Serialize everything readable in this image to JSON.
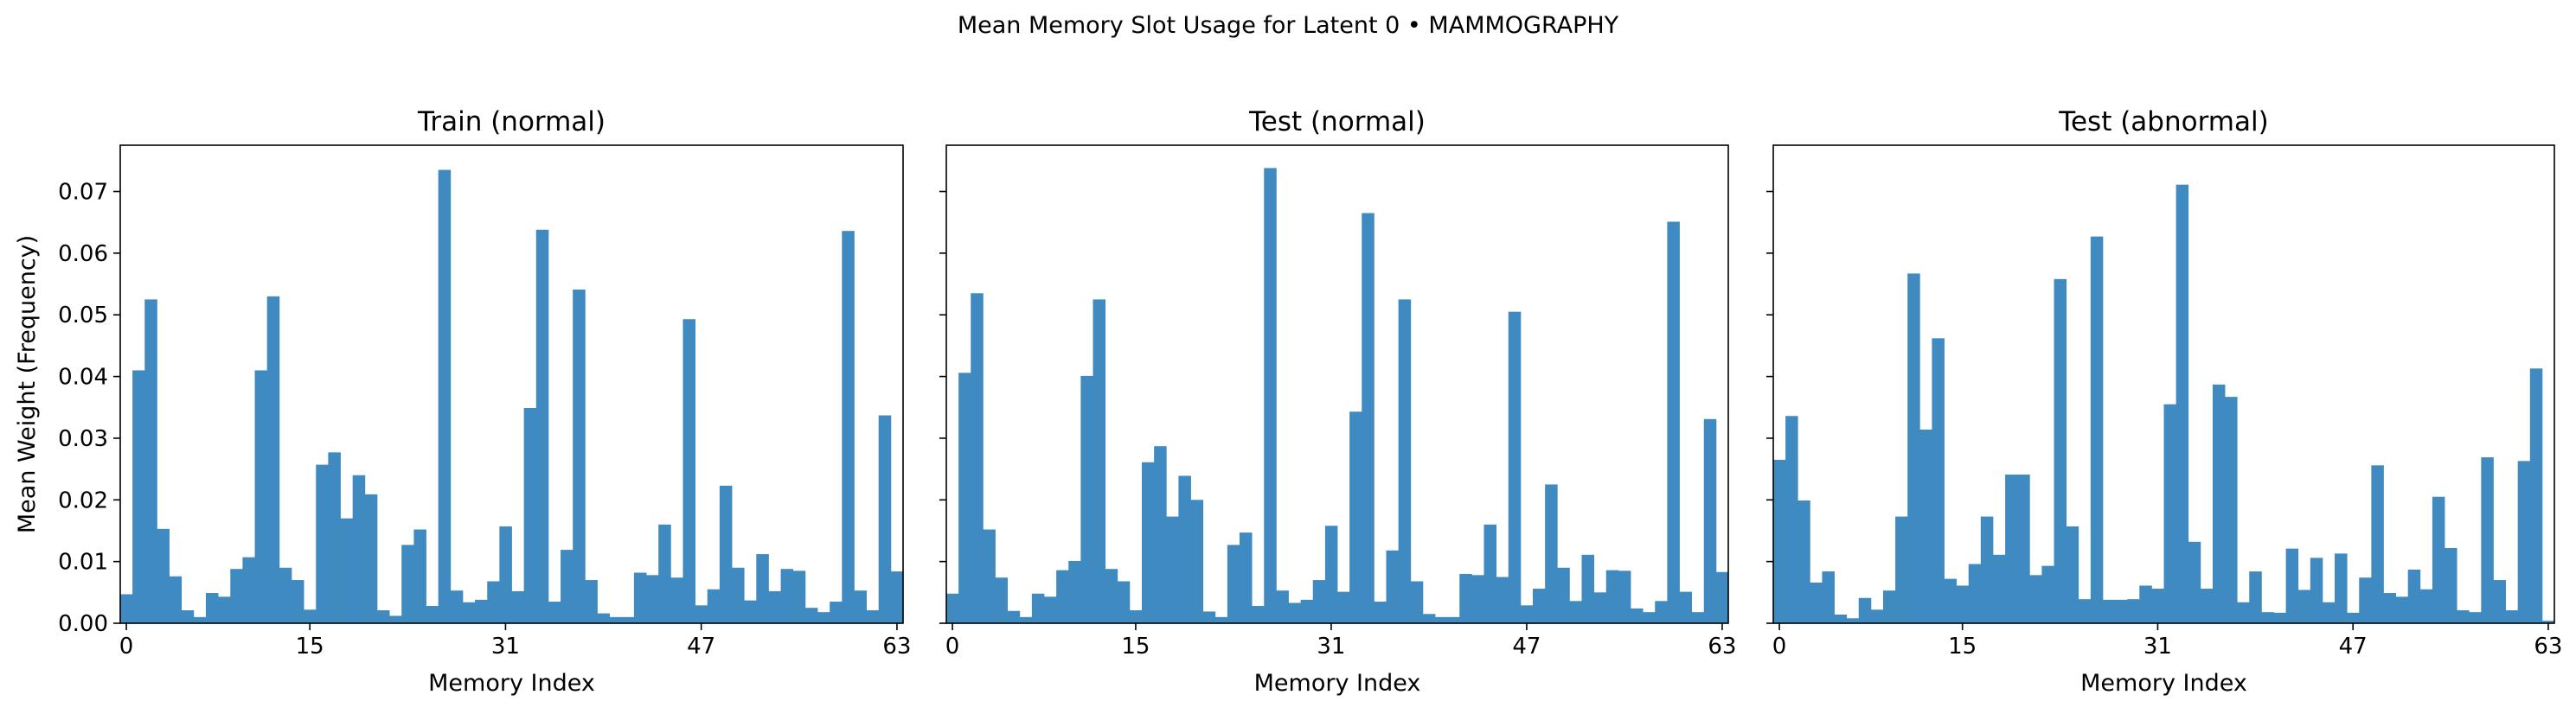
{
  "figure": {
    "suptitle": "Mean Memory Slot Usage for Latent 0 • MAMMOGRAPHY"
  },
  "style": {
    "bar_color": "#3f8bc1",
    "axis_color": "#000000",
    "background": "#ffffff"
  },
  "chart_data": [
    {
      "type": "bar",
      "title": "Train (normal)",
      "xlabel": "Memory Index",
      "ylabel": "Mean Weight (Frequency)",
      "xticks": [
        0,
        15,
        31,
        47,
        63
      ],
      "ylim": [
        0,
        0.0775
      ],
      "yticks": [
        0.0,
        0.01,
        0.02,
        0.03,
        0.04,
        0.05,
        0.06,
        0.07
      ],
      "ytick_labels": [
        "0.00",
        "0.01",
        "0.02",
        "0.03",
        "0.04",
        "0.05",
        "0.06",
        "0.07"
      ],
      "grid": false,
      "x": [
        0,
        1,
        2,
        3,
        4,
        5,
        6,
        7,
        8,
        9,
        10,
        11,
        12,
        13,
        14,
        15,
        16,
        17,
        18,
        19,
        20,
        21,
        22,
        23,
        24,
        25,
        26,
        27,
        28,
        29,
        30,
        31,
        32,
        33,
        34,
        35,
        36,
        37,
        38,
        39,
        40,
        41,
        42,
        43,
        44,
        45,
        46,
        47,
        48,
        49,
        50,
        51,
        52,
        53,
        54,
        55,
        56,
        57,
        58,
        59,
        60,
        61,
        62,
        63
      ],
      "values": [
        0.0047,
        0.041,
        0.0525,
        0.0153,
        0.0076,
        0.0021,
        0.001,
        0.0049,
        0.0043,
        0.0088,
        0.0107,
        0.041,
        0.053,
        0.009,
        0.007,
        0.0022,
        0.0257,
        0.0277,
        0.017,
        0.024,
        0.0209,
        0.0021,
        0.0012,
        0.0127,
        0.0152,
        0.0028,
        0.0735,
        0.0053,
        0.0034,
        0.0038,
        0.0068,
        0.0157,
        0.0052,
        0.0349,
        0.0638,
        0.0035,
        0.0119,
        0.0541,
        0.007,
        0.0016,
        0.001,
        0.001,
        0.0082,
        0.0078,
        0.016,
        0.0074,
        0.0493,
        0.0029,
        0.0055,
        0.0223,
        0.009,
        0.0037,
        0.0112,
        0.0052,
        0.0088,
        0.0085,
        0.0025,
        0.0018,
        0.0035,
        0.0636,
        0.0053,
        0.0021,
        0.0337,
        0.0084
      ]
    },
    {
      "type": "bar",
      "title": "Test (normal)",
      "xlabel": "Memory Index",
      "ylabel": "",
      "xticks": [
        0,
        15,
        31,
        47,
        63
      ],
      "ylim": [
        0,
        0.0775
      ],
      "yticks": [
        0.0,
        0.01,
        0.02,
        0.03,
        0.04,
        0.05,
        0.06,
        0.07
      ],
      "ytick_labels": [
        "",
        "",
        "",
        "",
        "",
        "",
        "",
        ""
      ],
      "grid": false,
      "x": [
        0,
        1,
        2,
        3,
        4,
        5,
        6,
        7,
        8,
        9,
        10,
        11,
        12,
        13,
        14,
        15,
        16,
        17,
        18,
        19,
        20,
        21,
        22,
        23,
        24,
        25,
        26,
        27,
        28,
        29,
        30,
        31,
        32,
        33,
        34,
        35,
        36,
        37,
        38,
        39,
        40,
        41,
        42,
        43,
        44,
        45,
        46,
        47,
        48,
        49,
        50,
        51,
        52,
        53,
        54,
        55,
        56,
        57,
        58,
        59,
        60,
        61,
        62,
        63
      ],
      "values": [
        0.0048,
        0.0406,
        0.0535,
        0.0152,
        0.0074,
        0.002,
        0.001,
        0.0048,
        0.0043,
        0.0086,
        0.0101,
        0.0401,
        0.0525,
        0.0088,
        0.0068,
        0.0021,
        0.0261,
        0.0287,
        0.0173,
        0.0239,
        0.02,
        0.0019,
        0.001,
        0.0127,
        0.0147,
        0.0028,
        0.0738,
        0.0053,
        0.0033,
        0.0038,
        0.007,
        0.0158,
        0.0051,
        0.0343,
        0.0665,
        0.0035,
        0.0118,
        0.0525,
        0.0068,
        0.0015,
        0.001,
        0.001,
        0.008,
        0.0078,
        0.016,
        0.0075,
        0.0505,
        0.0029,
        0.0056,
        0.0225,
        0.009,
        0.0036,
        0.0111,
        0.005,
        0.0086,
        0.0085,
        0.0024,
        0.0018,
        0.0036,
        0.0651,
        0.0051,
        0.0018,
        0.0331,
        0.0083
      ]
    },
    {
      "type": "bar",
      "title": "Test (abnormal)",
      "xlabel": "Memory Index",
      "ylabel": "",
      "xticks": [
        0,
        15,
        31,
        47,
        63
      ],
      "ylim": [
        0,
        0.0775
      ],
      "yticks": [
        0.0,
        0.01,
        0.02,
        0.03,
        0.04,
        0.05,
        0.06,
        0.07
      ],
      "ytick_labels": [
        "",
        "",
        "",
        "",
        "",
        "",
        "",
        ""
      ],
      "grid": false,
      "x": [
        0,
        1,
        2,
        3,
        4,
        5,
        6,
        7,
        8,
        9,
        10,
        11,
        12,
        13,
        14,
        15,
        16,
        17,
        18,
        19,
        20,
        21,
        22,
        23,
        24,
        25,
        26,
        27,
        28,
        29,
        30,
        31,
        32,
        33,
        34,
        35,
        36,
        37,
        38,
        39,
        40,
        41,
        42,
        43,
        44,
        45,
        46,
        47,
        48,
        49,
        50,
        51,
        52,
        53,
        54,
        55,
        56,
        57,
        58,
        59,
        60,
        61,
        62,
        63
      ],
      "values": [
        0.0265,
        0.0336,
        0.0199,
        0.0066,
        0.0084,
        0.0014,
        0.0008,
        0.0041,
        0.0022,
        0.0053,
        0.0173,
        0.0567,
        0.0314,
        0.0462,
        0.0072,
        0.0061,
        0.0096,
        0.0173,
        0.0111,
        0.0241,
        0.0241,
        0.0078,
        0.0093,
        0.0558,
        0.0157,
        0.0039,
        0.0627,
        0.0038,
        0.0038,
        0.0039,
        0.0061,
        0.0056,
        0.0355,
        0.0711,
        0.0132,
        0.0056,
        0.0387,
        0.0367,
        0.0034,
        0.0084,
        0.0018,
        0.0017,
        0.0121,
        0.0054,
        0.0106,
        0.0034,
        0.0113,
        0.0017,
        0.0074,
        0.0256,
        0.0049,
        0.0043,
        0.0087,
        0.0055,
        0.0205,
        0.0122,
        0.0021,
        0.0018,
        0.0269,
        0.007,
        0.0021,
        0.0263,
        0.0413,
        0.0004
      ]
    }
  ]
}
